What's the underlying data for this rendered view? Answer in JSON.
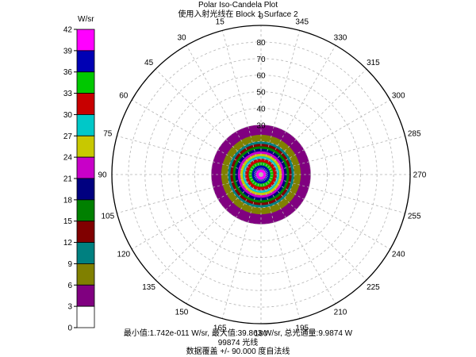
{
  "chart_data": {
    "type": "heatmap",
    "subtype": "polar iso-candela plot",
    "title": "Polar Iso-Candela Plot",
    "subtitle": "使用入射光线在 Block 1 Surface 2",
    "colorbar": {
      "unit_label": "W/sr",
      "ticks": [
        42,
        39,
        36,
        33,
        30,
        27,
        24,
        21,
        18,
        15,
        12,
        9,
        6,
        3,
        0
      ],
      "band_colors_top_to_bottom": [
        "#ff00ff",
        "#0000b4",
        "#00c800",
        "#c80000",
        "#00c8c8",
        "#c8c800",
        "#c800c8",
        "#000080",
        "#008000",
        "#800000",
        "#008080",
        "#808000",
        "#800080",
        "#ffffff"
      ]
    },
    "angular_ticks": [
      "0",
      "15",
      "30",
      "45",
      "60",
      "75",
      "90",
      "105",
      "120",
      "135",
      "150",
      "165",
      "180",
      "195",
      "210",
      "225",
      "240",
      "255",
      "270",
      "285",
      "300",
      "315",
      "330",
      "345"
    ],
    "radial_ticks": [
      "80",
      "70",
      "60",
      "50",
      "40",
      "30"
    ],
    "radial_range": [
      0,
      90
    ],
    "grid": true,
    "iso_bands": [
      {
        "min_wsr": 0,
        "max_wsr": 3,
        "outer_radius_deg": 30.0,
        "color": "#ffffff"
      },
      {
        "min_wsr": 3,
        "max_wsr": 6,
        "outer_radius_deg": 30.0,
        "color": "#800080"
      },
      {
        "min_wsr": 6,
        "max_wsr": 9,
        "outer_radius_deg": 24.0,
        "color": "#808000"
      },
      {
        "min_wsr": 9,
        "max_wsr": 12,
        "outer_radius_deg": 20.0,
        "color": "#008080"
      },
      {
        "min_wsr": 12,
        "max_wsr": 15,
        "outer_radius_deg": 18.5,
        "color": "#800000"
      },
      {
        "min_wsr": 15,
        "max_wsr": 18,
        "outer_radius_deg": 17.0,
        "color": "#008000"
      },
      {
        "min_wsr": 18,
        "max_wsr": 21,
        "outer_radius_deg": 15.5,
        "color": "#000080"
      },
      {
        "min_wsr": 21,
        "max_wsr": 24,
        "outer_radius_deg": 14.0,
        "color": "#c800c8"
      },
      {
        "min_wsr": 24,
        "max_wsr": 27,
        "outer_radius_deg": 12.5,
        "color": "#c8c800"
      },
      {
        "min_wsr": 27,
        "max_wsr": 30,
        "outer_radius_deg": 11.0,
        "color": "#00c8c8"
      },
      {
        "min_wsr": 30,
        "max_wsr": 33,
        "outer_radius_deg": 9.5,
        "color": "#c80000"
      },
      {
        "min_wsr": 33,
        "max_wsr": 36,
        "outer_radius_deg": 7.5,
        "color": "#00c800"
      },
      {
        "min_wsr": 36,
        "max_wsr": 39,
        "outer_radius_deg": 5.5,
        "color": "#0000b4"
      },
      {
        "min_wsr": 39,
        "max_wsr": 42,
        "outer_radius_deg": 3.0,
        "color": "#ff00ff"
      }
    ],
    "min_value_wsr": 1.742e-11,
    "max_value_wsr": 39.863,
    "total_flux_w": 9.9874,
    "ray_count": 99874,
    "coverage_deg": 90.0
  },
  "footer": {
    "stats": "最小值:1.742e-011 W/sr, 最大值:39.863 W/sr, 总光通量:9.9874 W",
    "rays": "99874 光线",
    "coverage": "数据覆盖 +/- 90.000 度自法线"
  }
}
